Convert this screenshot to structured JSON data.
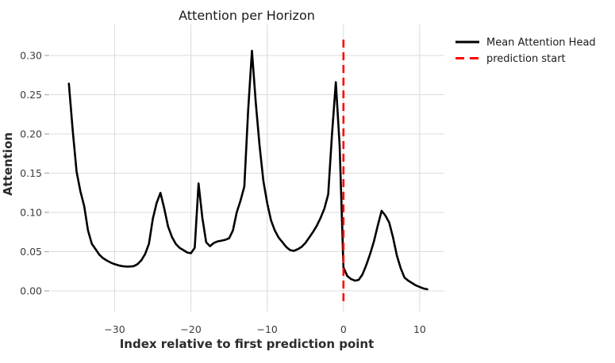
{
  "chart_data": {
    "type": "line",
    "title": "Attention per Horizon",
    "xlabel": "Index relative to first prediction point",
    "ylabel": "Attention",
    "grid": true,
    "legend_position": "outside-top-right",
    "xlim": [
      -38.5,
      13.2
    ],
    "ylim": [
      -0.021,
      0.34
    ],
    "x_ticks": {
      "values": [
        -30,
        -20,
        -10,
        0,
        10
      ],
      "labels": [
        "−30",
        "−20",
        "−10",
        "0",
        "10"
      ]
    },
    "y_ticks": {
      "values": [
        0.0,
        0.05,
        0.1,
        0.15,
        0.2,
        0.25,
        0.3
      ],
      "labels": [
        "0.00",
        "0.05",
        "0.10",
        "0.15",
        "0.20",
        "0.25",
        "0.30"
      ]
    },
    "series": [
      {
        "name": "Mean Attention Head",
        "color": "#000000",
        "style": "solid",
        "x": [
          -36,
          -35.5,
          -35,
          -34.5,
          -34,
          -33.5,
          -33,
          -32.5,
          -32,
          -31.5,
          -31,
          -30.5,
          -30,
          -29.5,
          -29,
          -28.5,
          -28,
          -27.5,
          -27,
          -26.5,
          -26,
          -25.5,
          -25,
          -24.5,
          -24,
          -23.5,
          -23,
          -22.5,
          -22,
          -21.5,
          -21,
          -20.5,
          -20,
          -19.5,
          -19,
          -18.5,
          -18,
          -17.5,
          -17,
          -16.5,
          -16,
          -15.5,
          -15,
          -14.5,
          -14,
          -13.5,
          -13,
          -12.5,
          -12,
          -11.5,
          -11,
          -10.5,
          -10,
          -9.5,
          -9,
          -8.5,
          -8,
          -7.5,
          -7,
          -6.5,
          -6,
          -5.5,
          -5,
          -4.5,
          -4,
          -3.5,
          -3,
          -2.5,
          -2,
          -1.5,
          -1,
          -0.5,
          0,
          0.5,
          1,
          1.5,
          2,
          2.5,
          3,
          3.5,
          4,
          4.5,
          5,
          5.5,
          6,
          6.5,
          7,
          7.5,
          8,
          8.5,
          9,
          9.5,
          10,
          10.5,
          11
        ],
        "y": [
          0.264,
          0.205,
          0.152,
          0.127,
          0.108,
          0.077,
          0.06,
          0.053,
          0.046,
          0.0415,
          0.0385,
          0.036,
          0.034,
          0.0325,
          0.0315,
          0.031,
          0.031,
          0.0315,
          0.034,
          0.039,
          0.047,
          0.06,
          0.092,
          0.112,
          0.125,
          0.105,
          0.082,
          0.069,
          0.06,
          0.055,
          0.052,
          0.049,
          0.048,
          0.055,
          0.137,
          0.093,
          0.062,
          0.057,
          0.061,
          0.063,
          0.064,
          0.065,
          0.067,
          0.077,
          0.1,
          0.115,
          0.133,
          0.23,
          0.306,
          0.24,
          0.185,
          0.14,
          0.112,
          0.09,
          0.077,
          0.068,
          0.062,
          0.056,
          0.052,
          0.051,
          0.053,
          0.056,
          0.061,
          0.068,
          0.075,
          0.083,
          0.093,
          0.105,
          0.123,
          0.2,
          0.266,
          0.185,
          0.03,
          0.019,
          0.015,
          0.013,
          0.014,
          0.021,
          0.033,
          0.047,
          0.063,
          0.083,
          0.102,
          0.096,
          0.087,
          0.068,
          0.045,
          0.029,
          0.017,
          0.013,
          0.01,
          0.007,
          0.005,
          0.003,
          0.002
        ]
      }
    ],
    "annotations": [
      {
        "name": "prediction start",
        "type": "vline",
        "x": 0,
        "color": "#ff0000",
        "style": "dashed"
      }
    ]
  }
}
